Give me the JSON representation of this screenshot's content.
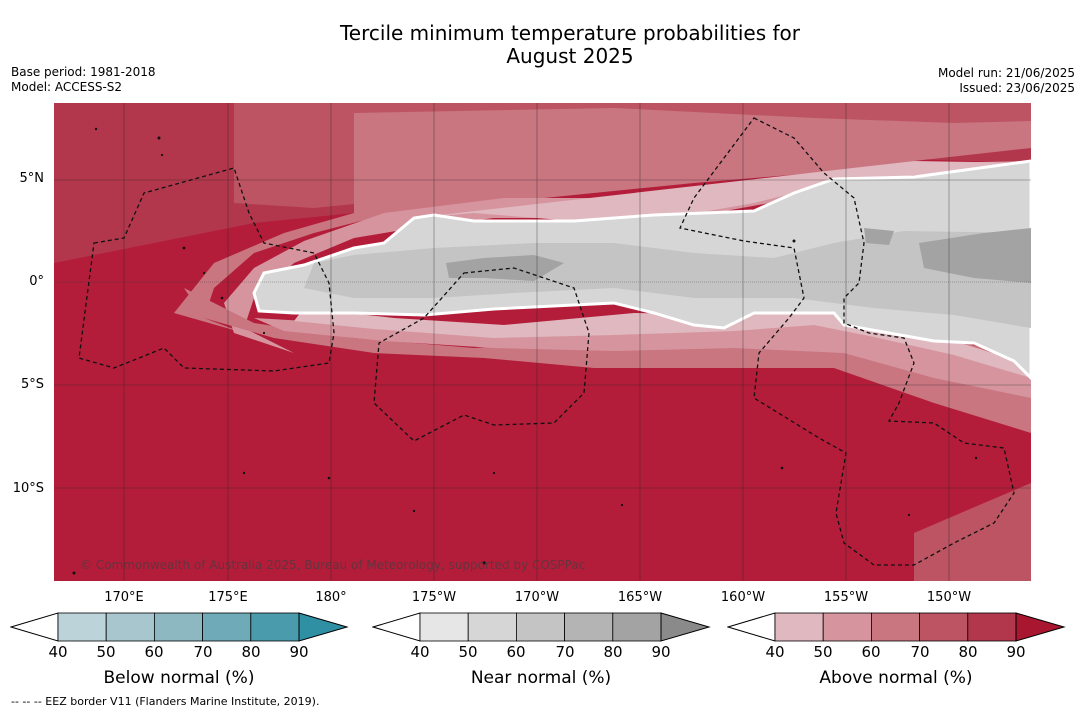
{
  "title_line1": "Tercile minimum temperature probabilities for",
  "title_line2": "August 2025",
  "base_period": "Base period: 1981-2018",
  "model": "Model: ACCESS-S2",
  "model_run": "Model run: 21/06/2025",
  "issued": "Issued: 23/06/2025",
  "lat_labels": [
    "5°N",
    "0°",
    "5°S",
    "10°S"
  ],
  "lon_labels": [
    "170°E",
    "175°E",
    "180°",
    "175°W",
    "170°W",
    "165°W",
    "160°W",
    "155°W",
    "150°W"
  ],
  "copyright": "© Commonwealth of Australia 2025, Bureau of Meteorology, supported by COSPPac",
  "colorbars": [
    {
      "title": "Below normal (%)",
      "ticks": [
        "40",
        "50",
        "60",
        "70",
        "80",
        "90"
      ],
      "colors": [
        "#bcd3da",
        "#a7c6cd",
        "#8db8c2",
        "#6eaab7",
        "#4a9cad",
        "#2f8fa3"
      ]
    },
    {
      "title": "Near normal (%)",
      "ticks": [
        "40",
        "50",
        "60",
        "70",
        "80",
        "90"
      ],
      "colors": [
        "#e6e6e6",
        "#d6d6d6",
        "#c4c4c4",
        "#b4b4b4",
        "#a3a3a3",
        "#8a8a8a"
      ]
    },
    {
      "title": "Above normal (%)",
      "ticks": [
        "40",
        "50",
        "60",
        "70",
        "80",
        "90"
      ],
      "colors": [
        "#e0b8bf",
        "#d6959e",
        "#c97681",
        "#bd5463",
        "#b2374d",
        "#a8162f"
      ]
    }
  ],
  "footnote": "--  --  -- EEZ border V11 (Flanders Marine Institute, 2019)."
}
